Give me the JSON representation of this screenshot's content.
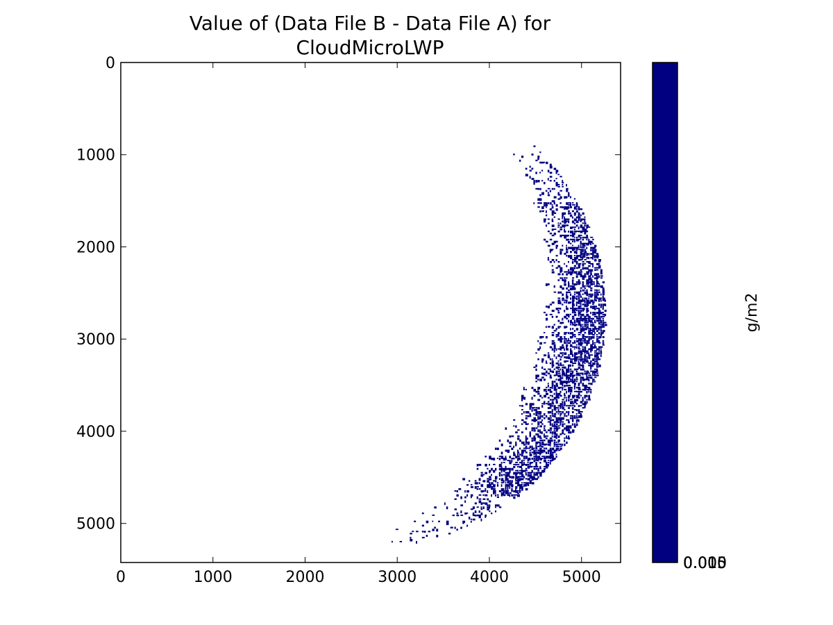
{
  "chart_data": {
    "type": "heatmap",
    "title_lines": [
      "Value of (Data File B - Data File A) for",
      "CloudMicroLWP"
    ],
    "xlim": [
      0,
      5424
    ],
    "ylim": [
      5424,
      0
    ],
    "x_ticks": [
      {
        "value": 0,
        "label": "0"
      },
      {
        "value": 1000,
        "label": "1000"
      },
      {
        "value": 2000,
        "label": "2000"
      },
      {
        "value": 3000,
        "label": "3000"
      },
      {
        "value": 4000,
        "label": "4000"
      },
      {
        "value": 5000,
        "label": "5000"
      }
    ],
    "y_ticks": [
      {
        "value": 0,
        "label": "0"
      },
      {
        "value": 1000,
        "label": "1000"
      },
      {
        "value": 2000,
        "label": "2000"
      },
      {
        "value": 3000,
        "label": "3000"
      },
      {
        "value": 4000,
        "label": "4000"
      },
      {
        "value": 5000,
        "label": "5000"
      }
    ],
    "data_color": "#000080",
    "background_color": "#ffffff",
    "colorbar": {
      "color": "#000080",
      "label": "g/m2",
      "tick_labels": [
        "0.000",
        "0.005",
        "0.010",
        "0.015"
      ]
    }
  }
}
